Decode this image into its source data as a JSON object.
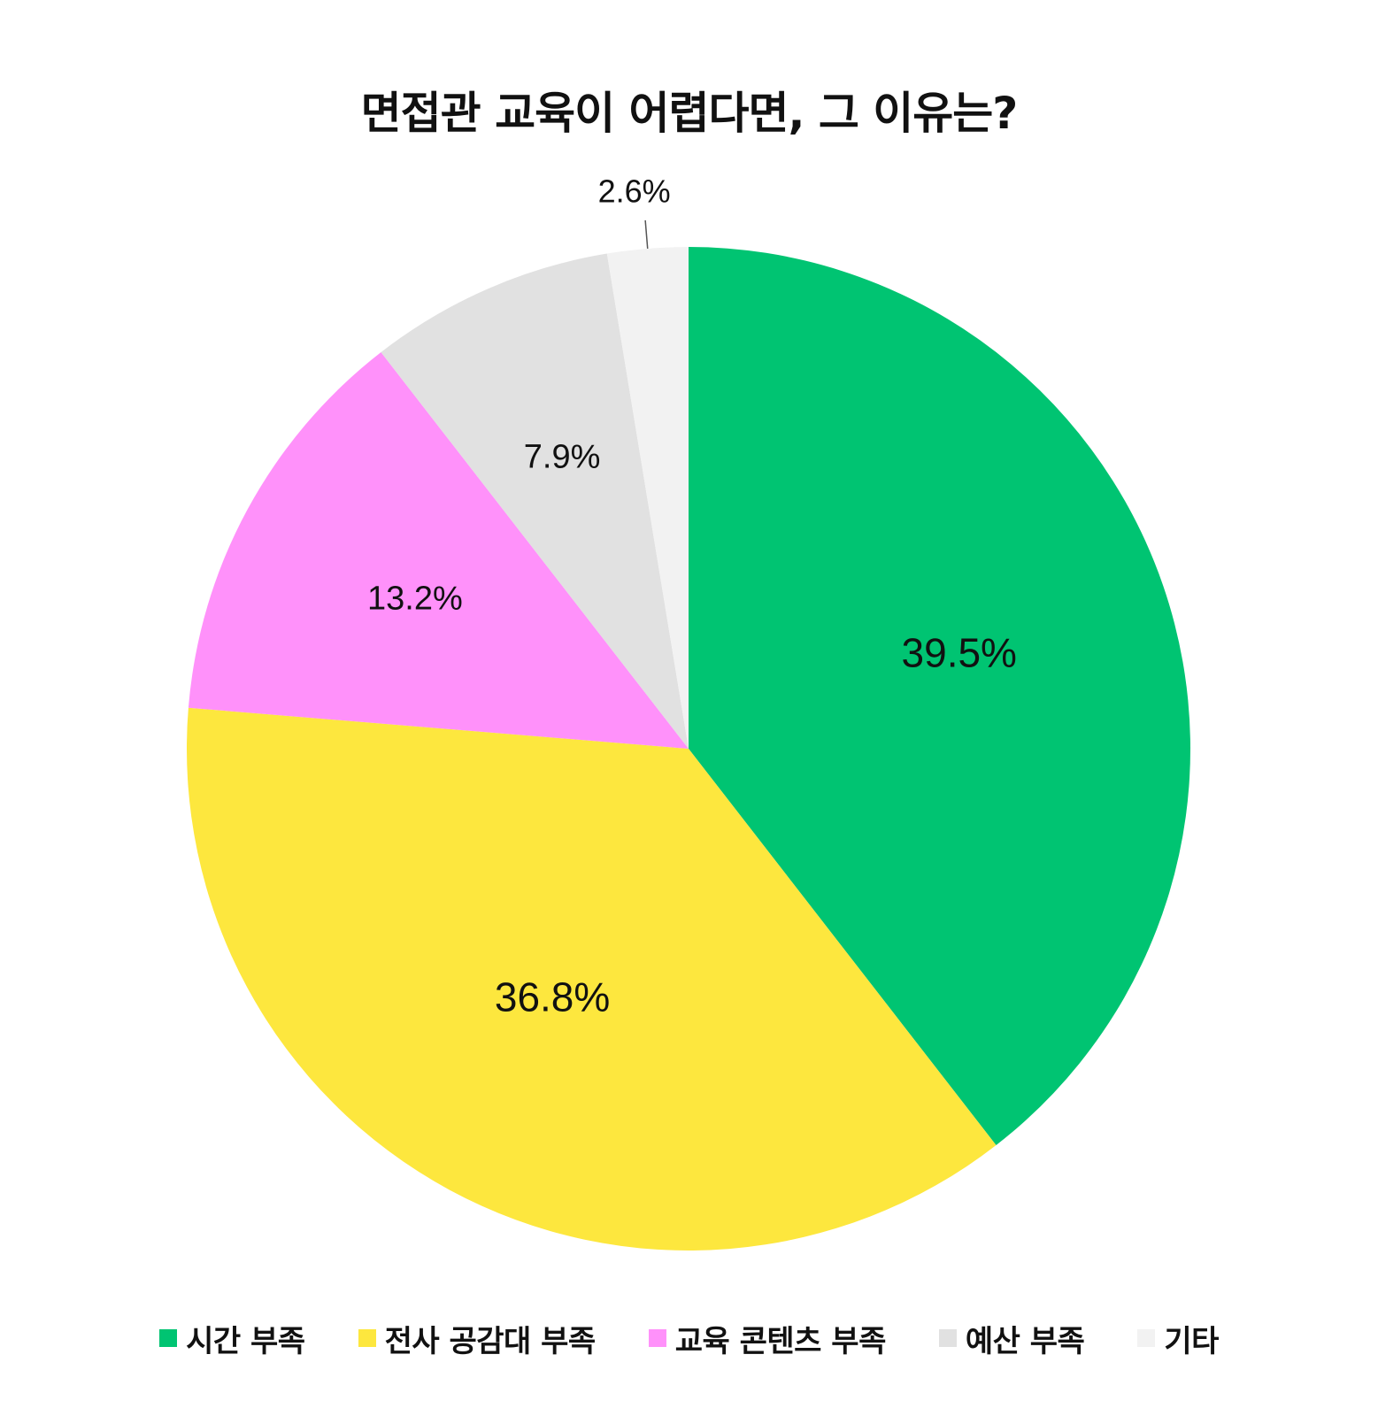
{
  "chart_data": {
    "type": "pie",
    "title": "면접관 교육이 어렵다면, 그 이유는?",
    "categories": [
      "시간 부족",
      "전사 공감대 부족",
      "교육 콘텐츠 부족",
      "예산 부족",
      "기타"
    ],
    "values": [
      39.5,
      36.8,
      13.2,
      7.9,
      2.6
    ],
    "labels": [
      "39.5%",
      "36.8%",
      "13.2%",
      "7.9%",
      "2.6%"
    ],
    "colors": [
      "#00C472",
      "#FDE73E",
      "#FF91FA",
      "#E1E1E1",
      "#F2F2F2"
    ],
    "start_angle": "12 o'clock",
    "direction": "clockwise",
    "legend_position": "bottom"
  }
}
